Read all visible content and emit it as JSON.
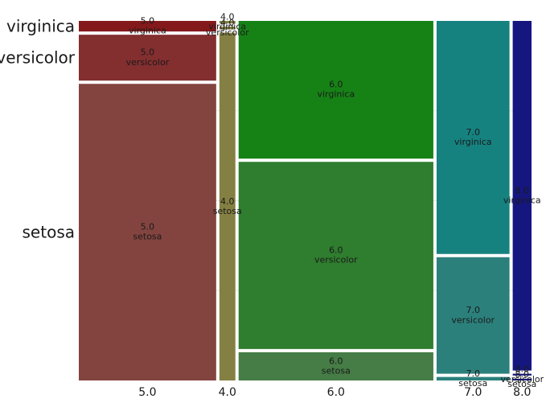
{
  "chart_data": {
    "type": "mosaic",
    "title": "",
    "xlabel": "",
    "ylabel": "",
    "x_categories": [
      "5.0",
      "4.0",
      "6.0",
      "7.0",
      "8.0"
    ],
    "y_categories": [
      "setosa",
      "versicolor",
      "virginica"
    ],
    "y_tick_labels": [
      "setosa",
      "versicolor",
      "virginica"
    ],
    "grid": true,
    "legend": "none",
    "columns": [
      {
        "category": "5.0",
        "width_fraction": 0.292,
        "segments": [
          {
            "category": "setosa",
            "fraction": 0.84,
            "label": "5.0\nsetosa",
            "color": "#834440"
          },
          {
            "category": "versicolor",
            "fraction": 0.13,
            "label": "5.0\nversicolor",
            "color": "#832e2f"
          },
          {
            "category": "virginica",
            "fraction": 0.03,
            "label": "5.0\nvirginica",
            "color": "#84191c"
          }
        ]
      },
      {
        "category": "4.0",
        "width_fraction": 0.034,
        "segments": [
          {
            "category": "setosa",
            "fraction": 0.985,
            "label": "4.0\nsetosa",
            "color": "#848044"
          },
          {
            "category": "versicolor",
            "fraction": 0.008,
            "label": "4.0\nversicolor",
            "color": "#848044"
          },
          {
            "category": "virginica",
            "fraction": 0.007,
            "label": "4.0\nvirginica",
            "color": "#848044"
          }
        ]
      },
      {
        "category": "6.0",
        "width_fraction": 0.414,
        "segments": [
          {
            "category": "setosa",
            "fraction": 0.08,
            "label": "6.0\nsetosa",
            "color": "#467d46"
          },
          {
            "category": "versicolor",
            "fraction": 0.53,
            "label": "6.0\nversicolor",
            "color": "#2f7d2f"
          },
          {
            "category": "virginica",
            "fraction": 0.39,
            "label": "6.0\nvirginica",
            "color": "#168216"
          }
        ]
      },
      {
        "category": "7.0",
        "width_fraction": 0.155,
        "segments": [
          {
            "category": "setosa",
            "fraction": 0.01,
            "label": "7.0\nsetosa",
            "color": "#2c807c"
          },
          {
            "category": "versicolor",
            "fraction": 0.33,
            "label": "7.0\nversicolor",
            "color": "#2c807c"
          },
          {
            "category": "virginica",
            "fraction": 0.66,
            "label": "7.0\nvirginica",
            "color": "#168280"
          }
        ]
      },
      {
        "category": "8.0",
        "width_fraction": 0.04,
        "segments": [
          {
            "category": "setosa",
            "fraction": 0.005,
            "label": "8.0\nsetosa",
            "color": "#161681"
          },
          {
            "category": "versicolor",
            "fraction": 0.005,
            "label": "8.0\nversicolor",
            "color": "#161681"
          },
          {
            "category": "virginica",
            "fraction": 0.99,
            "label": "8.0\nvirginica",
            "color": "#161681"
          }
        ]
      }
    ]
  },
  "colors": {
    "plot_background": "#ffffff",
    "grid": "#e6e6e6",
    "gap": "#ffffff"
  }
}
